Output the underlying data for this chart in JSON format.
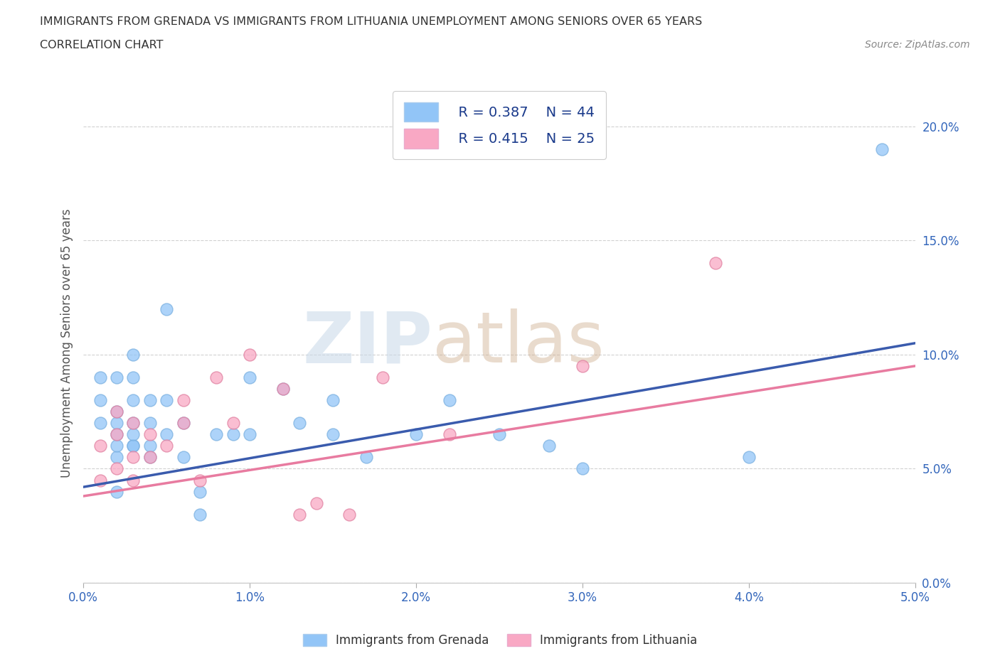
{
  "title_line1": "IMMIGRANTS FROM GRENADA VS IMMIGRANTS FROM LITHUANIA UNEMPLOYMENT AMONG SENIORS OVER 65 YEARS",
  "title_line2": "CORRELATION CHART",
  "source": "Source: ZipAtlas.com",
  "xlabel": "",
  "ylabel": "Unemployment Among Seniors over 65 years",
  "legend_label1": "Immigrants from Grenada",
  "legend_label2": "Immigrants from Lithuania",
  "R1": 0.387,
  "N1": 44,
  "R2": 0.415,
  "N2": 25,
  "color1": "#92C5F7",
  "color2": "#F9A8C4",
  "trend_color1": "#3A5BAD",
  "trend_color2": "#E87BA0",
  "xlim": [
    0.0,
    0.05
  ],
  "ylim": [
    0.0,
    0.21
  ],
  "xticks": [
    0.0,
    0.01,
    0.02,
    0.03,
    0.04,
    0.05
  ],
  "yticks": [
    0.0,
    0.05,
    0.1,
    0.15,
    0.2
  ],
  "watermark_zip": "ZIP",
  "watermark_atlas": "atlas",
  "grenada_x": [
    0.001,
    0.001,
    0.001,
    0.002,
    0.002,
    0.002,
    0.002,
    0.002,
    0.002,
    0.002,
    0.003,
    0.003,
    0.003,
    0.003,
    0.003,
    0.003,
    0.003,
    0.004,
    0.004,
    0.004,
    0.004,
    0.005,
    0.005,
    0.005,
    0.006,
    0.006,
    0.007,
    0.007,
    0.008,
    0.009,
    0.01,
    0.01,
    0.012,
    0.013,
    0.015,
    0.015,
    0.017,
    0.02,
    0.022,
    0.025,
    0.028,
    0.03,
    0.04,
    0.048
  ],
  "grenada_y": [
    0.07,
    0.08,
    0.09,
    0.055,
    0.06,
    0.065,
    0.07,
    0.075,
    0.04,
    0.09,
    0.06,
    0.07,
    0.08,
    0.09,
    0.06,
    0.065,
    0.1,
    0.055,
    0.07,
    0.08,
    0.06,
    0.065,
    0.08,
    0.12,
    0.055,
    0.07,
    0.03,
    0.04,
    0.065,
    0.065,
    0.09,
    0.065,
    0.085,
    0.07,
    0.08,
    0.065,
    0.055,
    0.065,
    0.08,
    0.065,
    0.06,
    0.05,
    0.055,
    0.19
  ],
  "lithuania_x": [
    0.001,
    0.001,
    0.002,
    0.002,
    0.002,
    0.003,
    0.003,
    0.003,
    0.004,
    0.004,
    0.005,
    0.006,
    0.006,
    0.007,
    0.008,
    0.009,
    0.01,
    0.012,
    0.013,
    0.014,
    0.016,
    0.018,
    0.022,
    0.03,
    0.038
  ],
  "lithuania_y": [
    0.045,
    0.06,
    0.05,
    0.065,
    0.075,
    0.045,
    0.055,
    0.07,
    0.055,
    0.065,
    0.06,
    0.07,
    0.08,
    0.045,
    0.09,
    0.07,
    0.1,
    0.085,
    0.03,
    0.035,
    0.03,
    0.09,
    0.065,
    0.095,
    0.14
  ],
  "grenada_trend_x": [
    0.0,
    0.05
  ],
  "grenada_trend_y": [
    0.042,
    0.105
  ],
  "lithuania_trend_x": [
    0.0,
    0.05
  ],
  "lithuania_trend_y": [
    0.038,
    0.095
  ]
}
